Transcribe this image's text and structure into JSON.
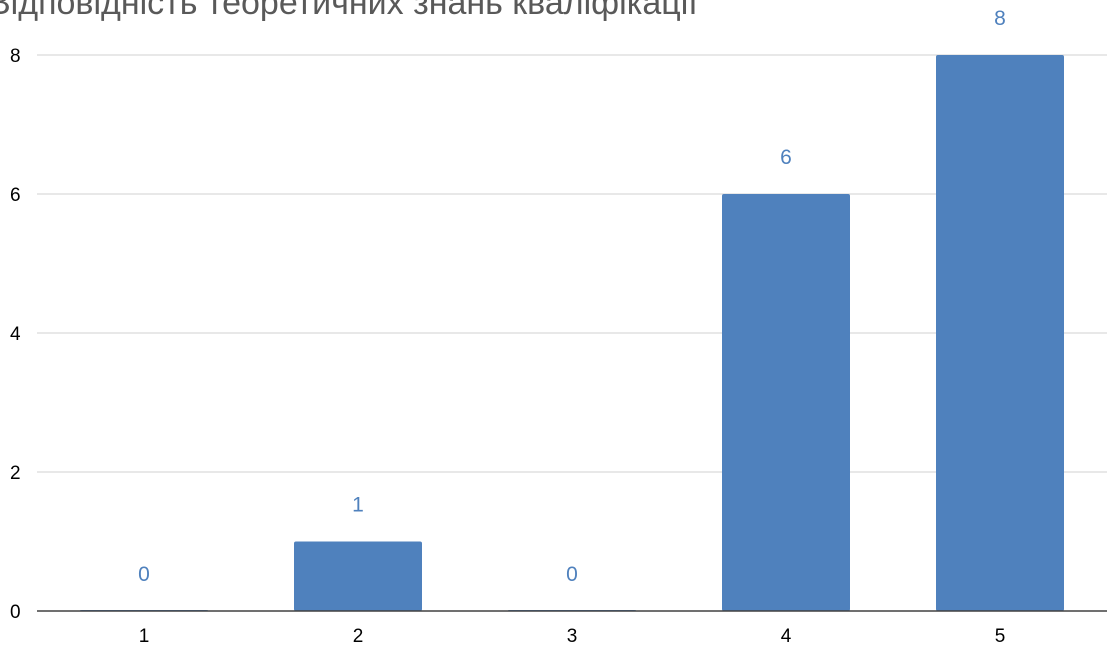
{
  "chart_data": {
    "type": "bar",
    "title": "Відповідність теоретичних знань кваліфікації",
    "categories": [
      "1",
      "2",
      "3",
      "4",
      "5"
    ],
    "values": [
      0,
      1,
      0,
      6,
      8
    ],
    "data_labels": [
      "0",
      "1",
      "0",
      "6",
      "8"
    ],
    "y_ticks": [
      "0",
      "2",
      "4",
      "6",
      "8"
    ],
    "ylim": [
      0,
      8
    ],
    "grid": true,
    "bar_color": "#4F81BD",
    "label_color": "#4F81BD",
    "grid_color": "#d9d9d9"
  }
}
